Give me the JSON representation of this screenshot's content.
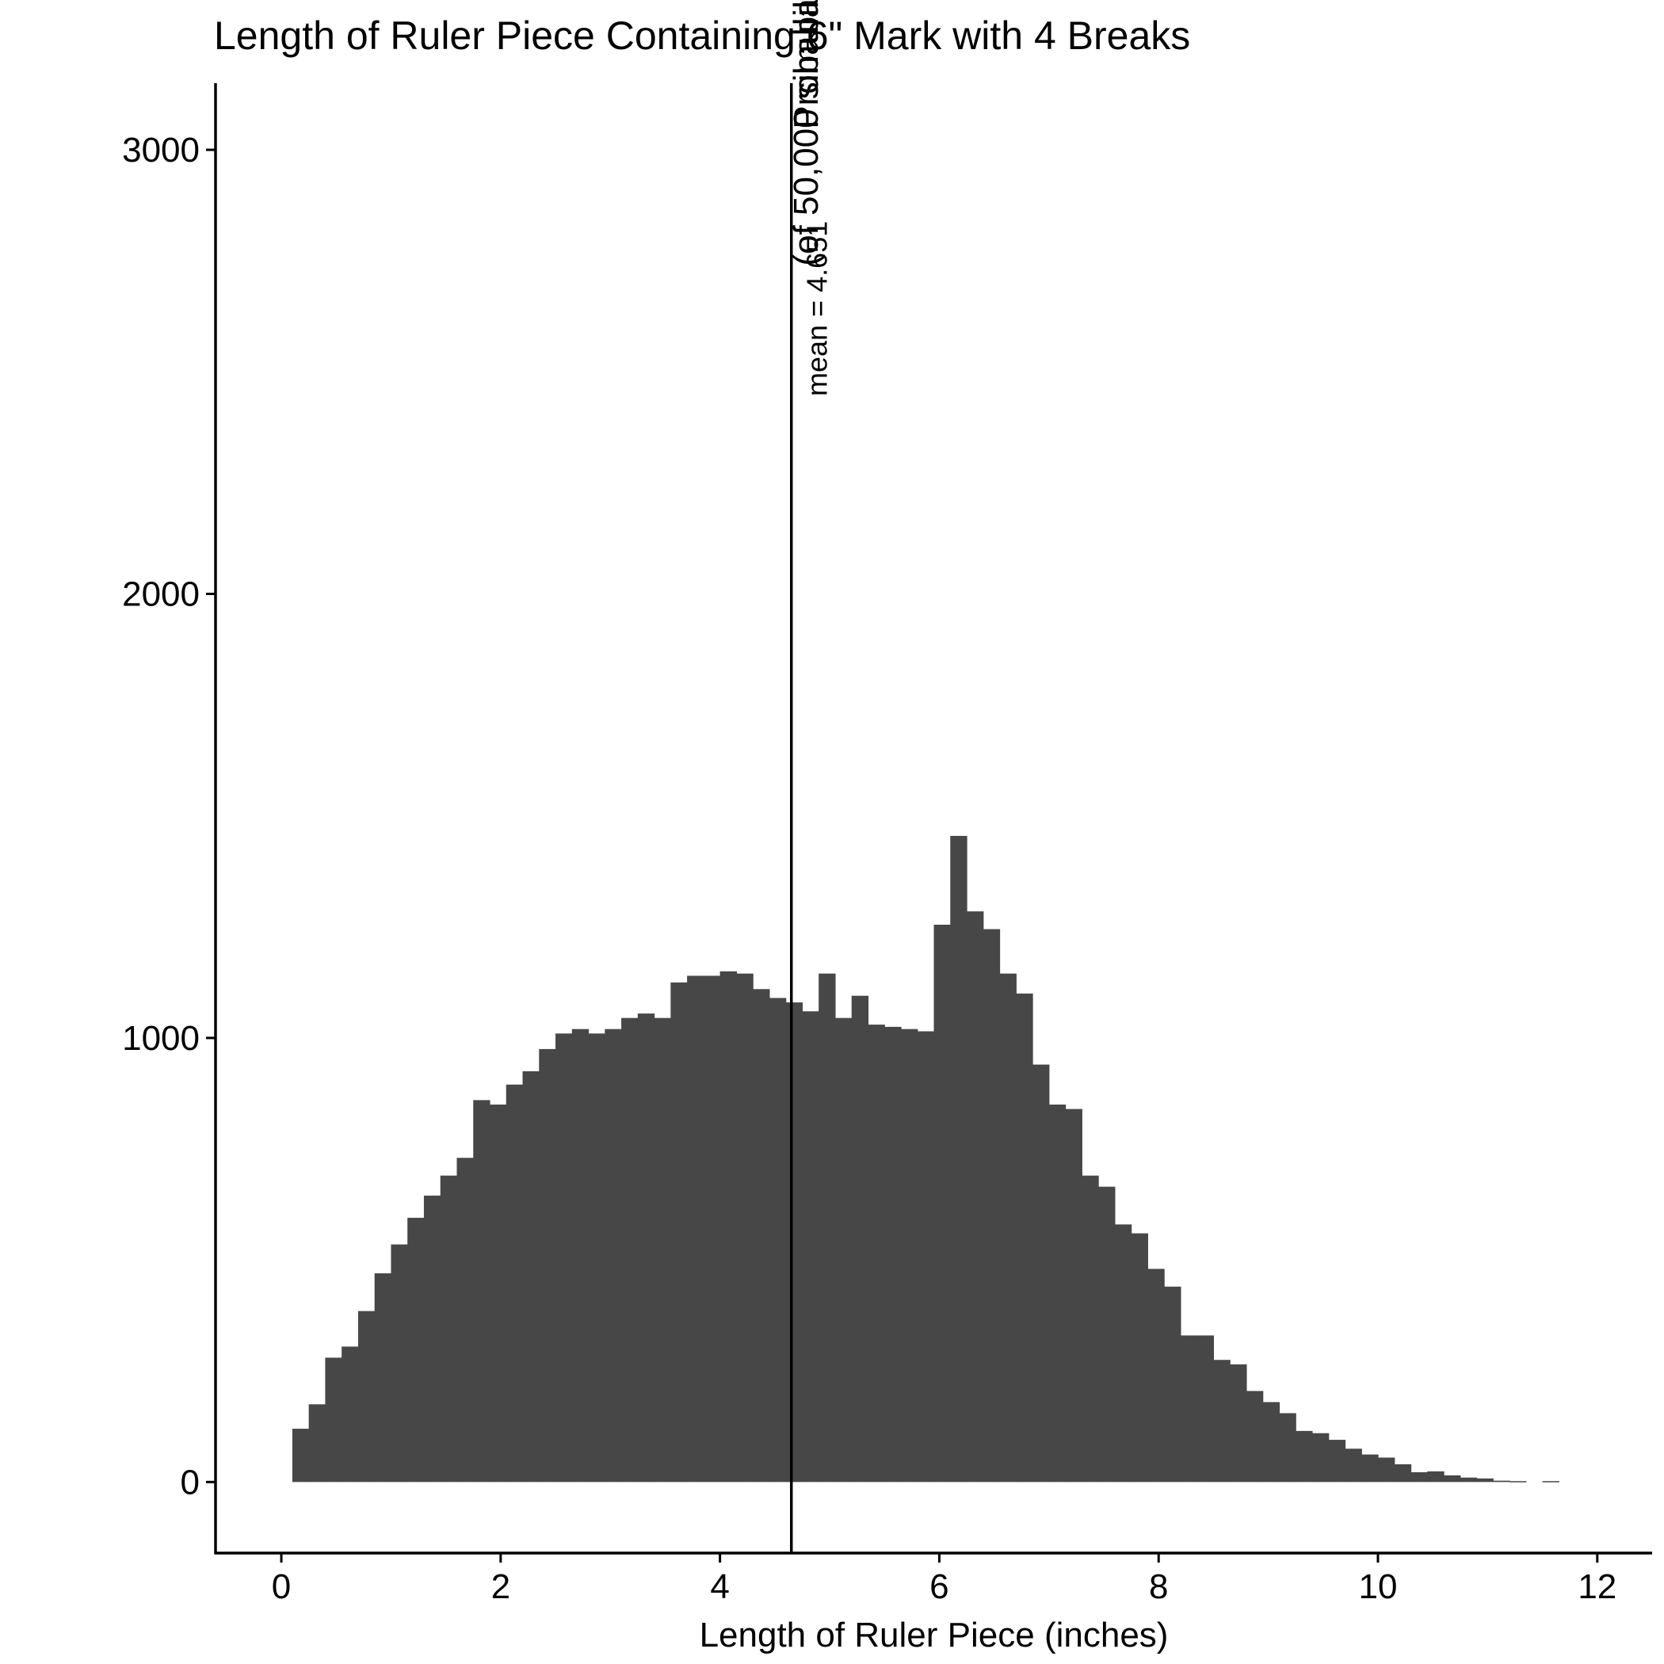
{
  "chart_data": {
    "type": "bar",
    "title": "Length of Ruler Piece Containing 6\" Mark with 4 Breaks",
    "xlabel": "Length of Ruler Piece (inches)",
    "ylabel_line1": "Probability",
    "ylabel_line2": "(of 50,000 simulations)",
    "xlim": [
      -0.6,
      12.5
    ],
    "ylim": [
      -160,
      3150
    ],
    "x_ticks": [
      0,
      2,
      4,
      6,
      8,
      10,
      12
    ],
    "x_tick_labels": [
      "0",
      "2",
      "4",
      "6",
      "8",
      "10",
      "12"
    ],
    "y_ticks": [
      0,
      1000,
      2000,
      3000
    ],
    "y_tick_labels": [
      "0",
      "1000",
      "2000",
      "3000"
    ],
    "bin_width": 0.15,
    "bin_start": 0.1,
    "values": [
      120,
      175,
      280,
      305,
      385,
      470,
      535,
      595,
      645,
      690,
      730,
      860,
      850,
      895,
      925,
      975,
      1010,
      1020,
      1010,
      1020,
      1045,
      1055,
      1045,
      1125,
      1140,
      1140,
      1150,
      1145,
      1110,
      1090,
      1080,
      1060,
      1145,
      1045,
      1095,
      1030,
      1025,
      1020,
      1015,
      1255,
      1455,
      1285,
      1245,
      1145,
      1100,
      940,
      850,
      840,
      690,
      665,
      580,
      560,
      480,
      440,
      330,
      330,
      275,
      265,
      205,
      180,
      155,
      115,
      110,
      95,
      75,
      62,
      55,
      40,
      22,
      24,
      15,
      10,
      8,
      3,
      2,
      0,
      2
    ],
    "bar_color": "#474747",
    "mean": 4.651,
    "annotation": "mean = 4.651",
    "grid": false
  }
}
